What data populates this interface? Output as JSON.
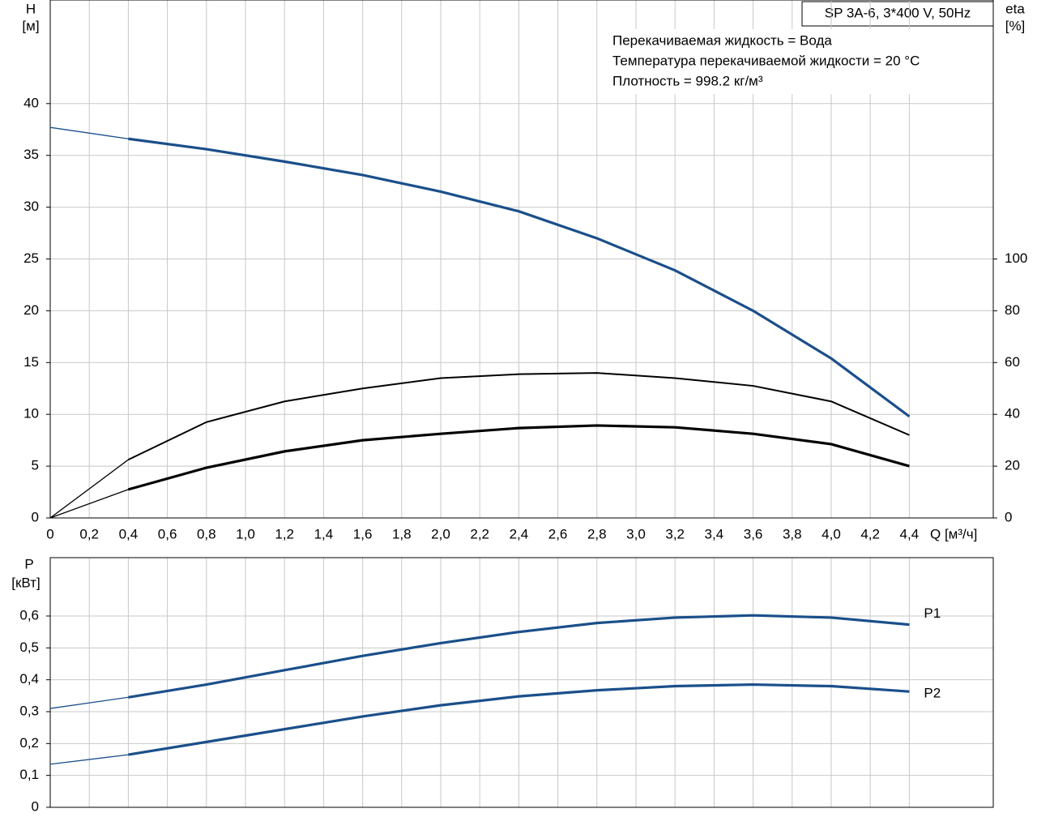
{
  "chart_data": [
    {
      "type": "line",
      "title": "SP 3A-6, 3*400 V, 50Hz",
      "annotations": [
        "Перекачиваемая жидкость = Вода",
        "Температура перекачиваемой жидкости = 20 °C",
        "Плотность = 998.2 кг/м³"
      ],
      "ylabel": "H",
      "yunit": "[м]",
      "y2label": "eta",
      "y2unit": "[%]",
      "xlabel": "Q [м³/ч]",
      "x": [
        0,
        0.4,
        0.8,
        1.2,
        1.6,
        2.0,
        2.4,
        2.8,
        3.2,
        3.6,
        4.0,
        4.4
      ],
      "series": [
        {
          "color": "#1a4f8a",
          "values": [
            37.7,
            36.6,
            35.6,
            34.4,
            33.1,
            31.5,
            29.6,
            27.0,
            23.9,
            20.0,
            15.4,
            9.8
          ]
        },
        {
          "color": "#000000",
          "axis": "y2",
          "values": [
            0,
            22.5,
            37,
            45,
            50,
            54,
            55.5,
            56,
            54,
            51,
            45,
            32
          ]
        },
        {
          "color": "#000000",
          "axis": "y2",
          "values": [
            0,
            11,
            19.4,
            25.7,
            30,
            32.5,
            34.7,
            35.7,
            35,
            32.5,
            28.5,
            20
          ]
        }
      ],
      "xlim": [
        0,
        4.83
      ],
      "ylim": [
        0,
        50
      ],
      "y2lim": [
        0,
        200
      ],
      "xticks": [
        0,
        {
          "value": 0.2,
          "label": "0,2"
        },
        {
          "value": 0.4,
          "label": "0,4"
        },
        {
          "value": 0.6,
          "label": "0,6"
        },
        {
          "value": 0.8,
          "label": "0,8"
        },
        {
          "value": 1.0,
          "label": "1,0"
        },
        {
          "value": 1.2,
          "label": "1,2"
        },
        {
          "value": 1.4,
          "label": "1,4"
        },
        {
          "value": 1.6,
          "label": "1,6"
        },
        {
          "value": 1.8,
          "label": "1,8"
        },
        {
          "value": 2.0,
          "label": "2,0"
        },
        {
          "value": 2.2,
          "label": "2,2"
        },
        {
          "value": 2.4,
          "label": "2,4"
        },
        {
          "value": 2.6,
          "label": "2,6"
        },
        {
          "value": 2.8,
          "label": "2,8"
        },
        {
          "value": 3.0,
          "label": "3,0"
        },
        {
          "value": 3.2,
          "label": "3,2"
        },
        {
          "value": 3.4,
          "label": "3,4"
        },
        {
          "value": 3.6,
          "label": "3,6"
        },
        {
          "value": 3.8,
          "label": "3,8"
        },
        {
          "value": 4.0,
          "label": "4,0"
        },
        {
          "value": 4.2,
          "label": "4,2"
        },
        {
          "value": 4.4,
          "label": "4,4"
        }
      ],
      "yticks": [
        0,
        5,
        10,
        15,
        20,
        25,
        30,
        35,
        40
      ],
      "y2ticks": [
        0,
        20,
        40,
        60,
        80,
        100
      ],
      "grid": true
    },
    {
      "type": "line",
      "ylabel": "P",
      "yunit": "[кВт]",
      "x": [
        0,
        0.4,
        0.8,
        1.2,
        1.6,
        2.0,
        2.4,
        2.8,
        3.2,
        3.6,
        4.0,
        4.4
      ],
      "series": [
        {
          "name": "P1",
          "color": "#1a4f8a",
          "values": [
            0.31,
            0.345,
            0.385,
            0.43,
            0.475,
            0.515,
            0.55,
            0.578,
            0.595,
            0.602,
            0.595,
            0.573
          ]
        },
        {
          "name": "P2",
          "color": "#1a4f8a",
          "values": [
            0.135,
            0.165,
            0.205,
            0.245,
            0.285,
            0.32,
            0.348,
            0.367,
            0.38,
            0.385,
            0.38,
            0.363
          ]
        }
      ],
      "xlim": [
        0,
        4.83
      ],
      "ylim": [
        0,
        0.783
      ],
      "yticks": [
        0,
        {
          "value": 0.1,
          "label": "0,1"
        },
        {
          "value": 0.2,
          "label": "0,2"
        },
        {
          "value": 0.3,
          "label": "0,3"
        },
        {
          "value": 0.4,
          "label": "0,4"
        },
        {
          "value": 0.5,
          "label": "0,5"
        },
        {
          "value": 0.6,
          "label": "0,6"
        }
      ],
      "grid": true
    }
  ]
}
